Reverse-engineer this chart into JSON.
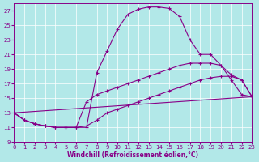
{
  "xlabel": "Windchill (Refroidissement éolien,°C)",
  "bg_color": "#b2e8e8",
  "line_color": "#880088",
  "xlim": [
    0,
    23
  ],
  "ylim": [
    9,
    28
  ],
  "xticks": [
    0,
    1,
    2,
    3,
    4,
    5,
    6,
    7,
    8,
    9,
    10,
    11,
    12,
    13,
    14,
    15,
    16,
    17,
    18,
    19,
    20,
    21,
    22,
    23
  ],
  "yticks": [
    9,
    11,
    13,
    15,
    17,
    19,
    21,
    23,
    25,
    27
  ],
  "lines": [
    {
      "x": [
        0,
        1,
        2,
        3,
        4,
        5,
        6,
        7,
        8,
        9,
        10,
        11,
        12,
        13,
        14,
        15,
        16,
        17,
        18,
        19,
        20,
        21,
        22,
        23
      ],
      "y": [
        13,
        12,
        11.5,
        11.2,
        11.0,
        11.0,
        11.0,
        11.0,
        18.5,
        21.5,
        24.5,
        26.5,
        27.2,
        27.5,
        27.5,
        27.3,
        26.2,
        23,
        21,
        21,
        19.5,
        17.5,
        15.5,
        15.2
      ]
    },
    {
      "x": [
        0,
        1,
        2,
        3,
        4,
        5,
        6,
        7,
        8,
        9,
        10,
        11,
        12,
        13,
        14,
        15,
        16,
        17,
        18,
        19,
        20,
        21,
        22,
        23
      ],
      "y": [
        13,
        12,
        11.5,
        11.2,
        11.0,
        11.0,
        11.0,
        14.5,
        15.5,
        16.0,
        16.5,
        17.0,
        17.5,
        18.0,
        18.5,
        19.0,
        19.5,
        19.8,
        19.8,
        19.8,
        19.5,
        18.2,
        17.5,
        15.2
      ]
    },
    {
      "x": [
        0,
        1,
        2,
        3,
        4,
        5,
        6,
        7,
        8,
        9,
        10,
        11,
        12,
        13,
        14,
        15,
        16,
        17,
        18,
        19,
        20,
        21,
        22,
        23
      ],
      "y": [
        13,
        12,
        11.5,
        11.2,
        11.0,
        11.0,
        11.0,
        11.2,
        12.0,
        13.0,
        13.5,
        14.0,
        14.5,
        15.0,
        15.5,
        16.0,
        16.5,
        17.0,
        17.5,
        17.8,
        18.0,
        18.0,
        17.5,
        15.2
      ]
    },
    {
      "x": [
        0,
        23
      ],
      "y": [
        13,
        15.2
      ]
    }
  ]
}
